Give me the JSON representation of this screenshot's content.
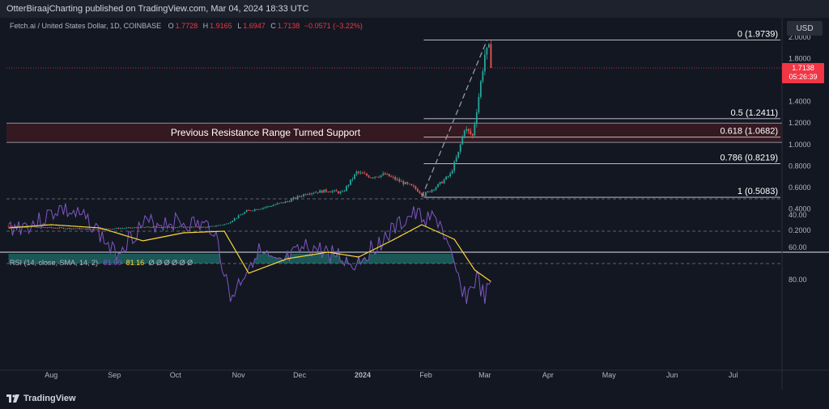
{
  "publisher": {
    "text": "OtterBiraajCharting published on TradingView.com, Mar 04, 2024 18:33 UTC"
  },
  "logo": {
    "text": "TradingView",
    "icon": "tradingview-logo-icon"
  },
  "currency_button": "USD",
  "legend": {
    "symbol": "Fetch.ai / United States Dollar, 1D, COINBASE",
    "open_label": "O",
    "open": "1.7728",
    "high_label": "H",
    "high": "1.9165",
    "low_label": "L",
    "low": "1.6947",
    "close_label": "C",
    "close": "1.7138",
    "change": "−0.0571 (−3.22%)"
  },
  "price_tag": {
    "price": "1.7138",
    "countdown": "05:26:39"
  },
  "rsi_legend": {
    "label": "RSI (14, close, SMA, 14, 2)",
    "rsi": "81.00",
    "sma": "81.16",
    "dots": "Ø Ø Ø Ø Ø Ø"
  },
  "annotation": "Previous Resistance Range Turned Support",
  "colors": {
    "up": "#26a69a",
    "down": "#ef5350",
    "rsi": "#7e57c2",
    "rsi_ma": "#fdd835",
    "support_zone": "#3a1a20",
    "price_line": "#f23645"
  },
  "chart_data": [
    {
      "type": "candlestick",
      "title": "",
      "x_axis": {
        "tick_labels": [
          "Aug",
          "Sep",
          "Oct",
          "Nov",
          "Dec",
          "2024",
          "Feb",
          "Mar",
          "Apr",
          "May",
          "Jun",
          "Jul"
        ]
      },
      "y_axis": {
        "range": [
          0.1,
          2.0
        ],
        "tick_values": [
          0.2,
          0.4,
          0.6,
          0.8,
          1.0,
          1.2,
          1.4,
          1.6,
          1.8,
          2.0
        ],
        "tick_labels": [
          "0.2000",
          "0.4000",
          "0.6000",
          "0.8000",
          "1.0000",
          "1.2000",
          "1.4000",
          "1.6000",
          "1.8000",
          "2.0000"
        ]
      },
      "current_price": 1.7138,
      "support_zone": {
        "from": 1.02,
        "to": 1.2,
        "label": "Previous Resistance Range Turned Support"
      },
      "fibonacci": [
        {
          "ratio": "0",
          "price": 1.9739,
          "label": "0 (1.9739)"
        },
        {
          "ratio": "0.5",
          "price": 1.2411,
          "label": "0.5 (1.2411)"
        },
        {
          "ratio": "0.618",
          "price": 1.0682,
          "label": "0.618 (1.0682)"
        },
        {
          "ratio": "0.786",
          "price": 0.8219,
          "label": "0.786 (0.8219)"
        },
        {
          "ratio": "1",
          "price": 0.5083,
          "label": "1 (0.5083)"
        }
      ],
      "trend_line": [
        {
          "date": "2024-01-30",
          "price": 0.51
        },
        {
          "date": "2024-03-02",
          "price": 1.97
        }
      ],
      "close_path": [
        {
          "date": "2023-07-11",
          "close": 0.24
        },
        {
          "date": "2023-07-25",
          "close": 0.23
        },
        {
          "date": "2023-08-08",
          "close": 0.22
        },
        {
          "date": "2023-08-22",
          "close": 0.21
        },
        {
          "date": "2023-09-05",
          "close": 0.22
        },
        {
          "date": "2023-09-19",
          "close": 0.23
        },
        {
          "date": "2023-10-03",
          "close": 0.23
        },
        {
          "date": "2023-10-17",
          "close": 0.23
        },
        {
          "date": "2023-10-26",
          "close": 0.26
        },
        {
          "date": "2023-11-05",
          "close": 0.38
        },
        {
          "date": "2023-11-15",
          "close": 0.42
        },
        {
          "date": "2023-11-25",
          "close": 0.47
        },
        {
          "date": "2023-12-05",
          "close": 0.55
        },
        {
          "date": "2023-12-15",
          "close": 0.57
        },
        {
          "date": "2023-12-22",
          "close": 0.55
        },
        {
          "date": "2023-12-29",
          "close": 0.74
        },
        {
          "date": "2024-01-05",
          "close": 0.7
        },
        {
          "date": "2024-01-12",
          "close": 0.72
        },
        {
          "date": "2024-01-19",
          "close": 0.66
        },
        {
          "date": "2024-01-26",
          "close": 0.6
        },
        {
          "date": "2024-01-31",
          "close": 0.53
        },
        {
          "date": "2024-02-07",
          "close": 0.62
        },
        {
          "date": "2024-02-13",
          "close": 0.72
        },
        {
          "date": "2024-02-17",
          "close": 0.92
        },
        {
          "date": "2024-02-20",
          "close": 1.15
        },
        {
          "date": "2024-02-24",
          "close": 1.08
        },
        {
          "date": "2024-02-27",
          "close": 1.45
        },
        {
          "date": "2024-03-01",
          "close": 1.84
        },
        {
          "date": "2024-03-03",
          "close": 1.89
        },
        {
          "date": "2024-03-04",
          "close": 1.7138
        }
      ]
    },
    {
      "type": "line",
      "title": "",
      "y_axis": {
        "range": [
          20,
          100
        ],
        "tick_values": [
          40,
          60,
          80
        ],
        "tick_labels": [
          "40.00",
          "60.00",
          "80.00"
        ],
        "bands": [
          30,
          50,
          70
        ]
      },
      "series": [
        {
          "name": "RSI",
          "values_path": [
            {
              "date": "2023-07-11",
              "value": 48
            },
            {
              "date": "2023-07-25",
              "value": 45
            },
            {
              "date": "2023-08-05",
              "value": 36
            },
            {
              "date": "2023-08-20",
              "value": 44
            },
            {
              "date": "2023-09-01",
              "value": 64
            },
            {
              "date": "2023-09-15",
              "value": 46
            },
            {
              "date": "2023-10-01",
              "value": 44
            },
            {
              "date": "2023-10-20",
              "value": 48
            },
            {
              "date": "2023-10-28",
              "value": 92
            },
            {
              "date": "2023-11-10",
              "value": 62
            },
            {
              "date": "2023-11-20",
              "value": 72
            },
            {
              "date": "2023-12-05",
              "value": 60
            },
            {
              "date": "2023-12-20",
              "value": 65
            },
            {
              "date": "2023-12-27",
              "value": 71
            },
            {
              "date": "2024-01-10",
              "value": 56
            },
            {
              "date": "2024-01-25",
              "value": 40
            },
            {
              "date": "2024-02-08",
              "value": 44
            },
            {
              "date": "2024-02-15",
              "value": 74
            },
            {
              "date": "2024-02-21",
              "value": 91
            },
            {
              "date": "2024-02-26",
              "value": 79
            },
            {
              "date": "2024-03-01",
              "value": 92
            },
            {
              "date": "2024-03-04",
              "value": 81
            }
          ]
        },
        {
          "name": "RSI-based MA",
          "values_path": [
            {
              "date": "2023-07-11",
              "value": 48
            },
            {
              "date": "2023-08-01",
              "value": 46
            },
            {
              "date": "2023-08-25",
              "value": 48
            },
            {
              "date": "2023-09-15",
              "value": 56
            },
            {
              "date": "2023-10-05",
              "value": 51
            },
            {
              "date": "2023-10-25",
              "value": 50
            },
            {
              "date": "2023-11-06",
              "value": 76
            },
            {
              "date": "2023-11-25",
              "value": 67
            },
            {
              "date": "2023-12-15",
              "value": 63
            },
            {
              "date": "2023-12-30",
              "value": 66
            },
            {
              "date": "2024-01-15",
              "value": 56
            },
            {
              "date": "2024-01-30",
              "value": 46
            },
            {
              "date": "2024-02-15",
              "value": 55
            },
            {
              "date": "2024-02-25",
              "value": 74
            },
            {
              "date": "2024-03-04",
              "value": 81.16
            }
          ]
        }
      ]
    }
  ]
}
